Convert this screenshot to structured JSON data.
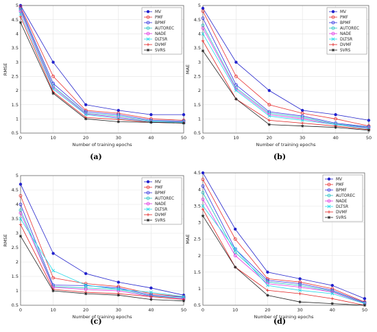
{
  "chart_data": [
    {
      "type": "line",
      "caption": "(a)",
      "xlabel": "Number of training epochs",
      "ylabel": "RMSE",
      "xlim": [
        0,
        50
      ],
      "ylim": [
        0.5,
        5
      ],
      "xticks": [
        "0",
        "10",
        "20",
        "30",
        "40",
        "50"
      ],
      "yticks": [
        "0.5",
        "1",
        "1.5",
        "2",
        "2.5",
        "3",
        "3.5",
        "4",
        "4.5",
        "5"
      ],
      "grid": true,
      "legend": "top-right",
      "x": [
        0,
        10,
        20,
        30,
        40,
        50
      ],
      "series": [
        {
          "name": "MV",
          "color": "#2222cc",
          "marker": "dot",
          "values": [
            5.0,
            3.0,
            1.5,
            1.3,
            1.15,
            1.15
          ]
        },
        {
          "name": "PMF",
          "color": "#e83030",
          "marker": "circle",
          "values": [
            4.95,
            2.5,
            1.3,
            1.2,
            1.0,
            0.95
          ]
        },
        {
          "name": "BPMF",
          "color": "#3030e0",
          "marker": "circle",
          "values": [
            4.9,
            2.25,
            1.25,
            1.15,
            0.95,
            0.92
          ]
        },
        {
          "name": "AUTOREC",
          "color": "#20c0c0",
          "marker": "circle",
          "values": [
            4.85,
            2.15,
            1.2,
            1.1,
            0.92,
            0.9
          ]
        },
        {
          "name": "NADE",
          "color": "#e030e0",
          "marker": "circle",
          "values": [
            4.8,
            2.1,
            1.18,
            1.05,
            0.9,
            0.88
          ]
        },
        {
          "name": "DLTSR",
          "color": "#20d8e8",
          "marker": "x",
          "values": [
            4.7,
            2.05,
            1.15,
            1.02,
            0.9,
            0.87
          ]
        },
        {
          "name": "DVMF",
          "color": "#e02020",
          "marker": "plus",
          "values": [
            4.6,
            1.95,
            1.05,
            0.98,
            0.88,
            0.85
          ]
        },
        {
          "name": "SVRS",
          "color": "#222222",
          "marker": "star",
          "values": [
            4.4,
            1.9,
            1.0,
            0.9,
            0.88,
            0.85
          ]
        }
      ]
    },
    {
      "type": "line",
      "caption": "(b)",
      "xlabel": "Number of training epochs",
      "ylabel": "MAE",
      "xlim": [
        0,
        50
      ],
      "ylim": [
        0.5,
        5
      ],
      "xticks": [
        "0",
        "10",
        "20",
        "30",
        "40",
        "50"
      ],
      "yticks": [
        "0.5",
        "1",
        "1.5",
        "2",
        "2.5",
        "3",
        "3.5",
        "4",
        "4.5",
        "5"
      ],
      "grid": true,
      "legend": "top-right",
      "x": [
        0,
        10,
        20,
        30,
        40,
        50
      ],
      "series": [
        {
          "name": "MV",
          "color": "#2222cc",
          "marker": "dot",
          "values": [
            4.9,
            3.0,
            2.0,
            1.3,
            1.15,
            0.95
          ]
        },
        {
          "name": "PMF",
          "color": "#e83030",
          "marker": "circle",
          "values": [
            4.8,
            2.5,
            1.5,
            1.2,
            1.0,
            0.75
          ]
        },
        {
          "name": "BPMF",
          "color": "#3030e0",
          "marker": "circle",
          "values": [
            4.55,
            2.2,
            1.25,
            1.1,
            0.85,
            0.72
          ]
        },
        {
          "name": "AUTOREC",
          "color": "#20c0c0",
          "marker": "circle",
          "values": [
            4.3,
            2.1,
            1.2,
            1.05,
            0.82,
            0.7
          ]
        },
        {
          "name": "NADE",
          "color": "#e030e0",
          "marker": "circle",
          "values": [
            4.2,
            2.05,
            1.15,
            1.0,
            0.8,
            0.68
          ]
        },
        {
          "name": "DLTSR",
          "color": "#20d8e8",
          "marker": "x",
          "values": [
            4.0,
            2.0,
            1.1,
            0.95,
            0.8,
            0.65
          ]
        },
        {
          "name": "DVMF",
          "color": "#e02020",
          "marker": "plus",
          "values": [
            3.75,
            1.7,
            0.95,
            0.85,
            0.75,
            0.62
          ]
        },
        {
          "name": "SVRS",
          "color": "#222222",
          "marker": "star",
          "values": [
            3.4,
            1.7,
            0.8,
            0.75,
            0.7,
            0.6
          ]
        }
      ]
    },
    {
      "type": "line",
      "caption": "(c)",
      "xlabel": "Number of training epochs",
      "ylabel": "RMSE",
      "xlim": [
        0,
        50
      ],
      "ylim": [
        0.5,
        5
      ],
      "xticks": [
        "0",
        "10",
        "20",
        "30",
        "40",
        "50"
      ],
      "yticks": [
        "0.5",
        "1",
        "1.5",
        "2",
        "2.5",
        "3",
        "3.5",
        "4",
        "4.5",
        "5"
      ],
      "grid": true,
      "legend": "top-right",
      "x": [
        0,
        10,
        20,
        30,
        40,
        50
      ],
      "series": [
        {
          "name": "MV",
          "color": "#2222cc",
          "marker": "dot",
          "values": [
            4.7,
            2.3,
            1.6,
            1.3,
            1.1,
            0.85
          ]
        },
        {
          "name": "PMF",
          "color": "#e83030",
          "marker": "circle",
          "values": [
            4.3,
            1.45,
            1.25,
            1.15,
            0.9,
            0.8
          ]
        },
        {
          "name": "BPMF",
          "color": "#3030e0",
          "marker": "circle",
          "values": [
            4.0,
            1.2,
            1.18,
            1.1,
            0.85,
            0.78
          ]
        },
        {
          "name": "AUTOREC",
          "color": "#20c0c0",
          "marker": "circle",
          "values": [
            3.8,
            1.15,
            1.1,
            1.05,
            0.82,
            0.75
          ]
        },
        {
          "name": "NADE",
          "color": "#e030e0",
          "marker": "circle",
          "values": [
            3.7,
            1.12,
            1.05,
            1.0,
            0.8,
            0.72
          ]
        },
        {
          "name": "DLTSR",
          "color": "#20d8e8",
          "marker": "x",
          "values": [
            3.5,
            1.7,
            1.2,
            1.05,
            0.95,
            0.8
          ]
        },
        {
          "name": "DVMF",
          "color": "#e02020",
          "marker": "plus",
          "values": [
            3.3,
            1.05,
            0.95,
            0.9,
            0.8,
            0.7
          ]
        },
        {
          "name": "SVRS",
          "color": "#222222",
          "marker": "star",
          "values": [
            2.9,
            1.0,
            0.9,
            0.85,
            0.7,
            0.65
          ]
        }
      ]
    },
    {
      "type": "line",
      "caption": "(d)",
      "xlabel": "Number of training epochs",
      "ylabel": "MAE",
      "xlim": [
        0,
        50
      ],
      "ylim": [
        0.5,
        4.5
      ],
      "xticks": [
        "0",
        "10",
        "20",
        "30",
        "40",
        "50"
      ],
      "yticks": [
        "0.5",
        "1",
        "1.5",
        "2",
        "2.5",
        "3",
        "3.5",
        "4",
        "4.5"
      ],
      "grid": true,
      "legend": "top-right",
      "x": [
        0,
        10,
        20,
        30,
        40,
        50
      ],
      "series": [
        {
          "name": "MV",
          "color": "#2222cc",
          "marker": "dot",
          "values": [
            4.5,
            2.8,
            1.5,
            1.3,
            1.1,
            0.7
          ]
        },
        {
          "name": "PMF",
          "color": "#e83030",
          "marker": "circle",
          "values": [
            4.3,
            2.5,
            1.3,
            1.2,
            1.0,
            0.6
          ]
        },
        {
          "name": "BPMF",
          "color": "#3030e0",
          "marker": "circle",
          "values": [
            4.1,
            2.2,
            1.25,
            1.15,
            0.95,
            0.58
          ]
        },
        {
          "name": "AUTOREC",
          "color": "#20c0c0",
          "marker": "circle",
          "values": [
            3.9,
            2.1,
            1.2,
            1.1,
            0.92,
            0.56
          ]
        },
        {
          "name": "NADE",
          "color": "#e030e0",
          "marker": "circle",
          "values": [
            3.7,
            2.0,
            1.15,
            1.05,
            0.9,
            0.55
          ]
        },
        {
          "name": "DLTSR",
          "color": "#20d8e8",
          "marker": "x",
          "values": [
            3.5,
            2.2,
            1.1,
            0.95,
            0.85,
            0.55
          ]
        },
        {
          "name": "DVMF",
          "color": "#e02020",
          "marker": "plus",
          "values": [
            3.4,
            1.65,
            0.95,
            0.85,
            0.7,
            0.5
          ]
        },
        {
          "name": "SVRS",
          "color": "#222222",
          "marker": "star",
          "values": [
            3.2,
            1.65,
            0.8,
            0.6,
            0.55,
            0.5
          ]
        }
      ]
    }
  ]
}
